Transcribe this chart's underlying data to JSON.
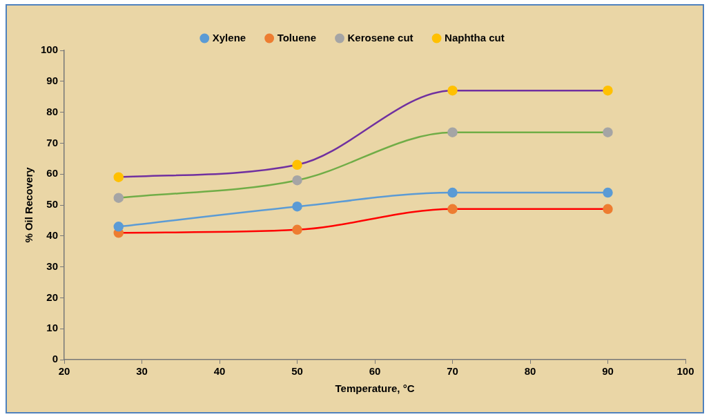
{
  "chart_data": {
    "type": "line",
    "xlabel": "Temperature, °C",
    "ylabel": "% Oil Recovery",
    "x": [
      27,
      50,
      70,
      90
    ],
    "series": [
      {
        "name": "Xylene",
        "color": "#5b9bd5",
        "colors": [
          "#5b9bd5",
          "#5b9bd5",
          "#5b9bd5",
          "#5b9bd5"
        ],
        "values": [
          43,
          49.5,
          54,
          54
        ]
      },
      {
        "name": "Toluene",
        "color": "#ff0000",
        "colors": [
          "#ed7d31",
          "#ed7d31",
          "#ed7d31",
          "#ed7d31"
        ],
        "values": [
          41,
          42,
          48.7,
          48.7
        ]
      },
      {
        "name": "Kerosene cut",
        "color": "#70ad47",
        "colors": [
          "#a5a5a5",
          "#a5a5a5",
          "#a5a5a5",
          "#a5a5a5"
        ],
        "values": [
          52.3,
          58,
          73.5,
          73.5
        ]
      },
      {
        "name": "Naphtha cut",
        "color": "#7030a0",
        "colors": [
          "#ffc000",
          "#ffc000",
          "#ffc000",
          "#ffc000"
        ],
        "values": [
          59,
          63,
          87,
          87
        ]
      }
    ],
    "xlim": [
      20,
      100
    ],
    "xticks": [
      20,
      30,
      40,
      50,
      60,
      70,
      80,
      90,
      100
    ],
    "ylim": [
      0,
      100
    ],
    "yticks": [
      0,
      10,
      20,
      30,
      40,
      50,
      60,
      70,
      80,
      90,
      100
    ],
    "grid": false,
    "legend": "top",
    "marker": "circle",
    "line_style": "solid"
  }
}
